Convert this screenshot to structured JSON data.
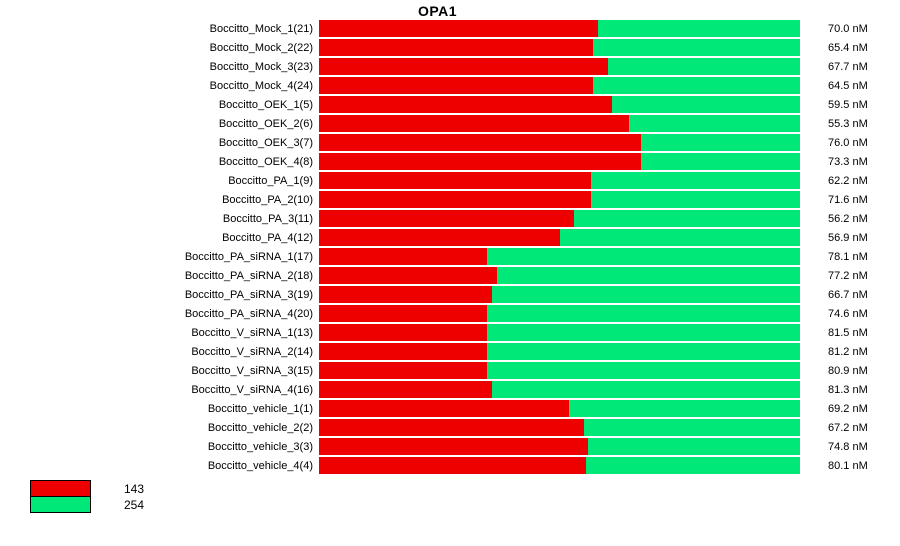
{
  "colors": {
    "red": "#ee0000",
    "green": "#00e878",
    "background": "#ffffff",
    "text": "#000000"
  },
  "chart_data": {
    "type": "bar",
    "orientation": "horizontal",
    "stacking": "percent",
    "grid": false,
    "legend_position": "bottom-left",
    "title": "OPA1",
    "value_unit": "nM",
    "legend": [
      {
        "label": "143",
        "color": "#ee0000"
      },
      {
        "label": "254",
        "color": "#00e878"
      }
    ],
    "rows": [
      {
        "label": "Boccitto_Mock_1(21)",
        "value_nM": 70.0,
        "value_label": "70.0 nM",
        "fraction_143": 0.58,
        "fraction_254": 0.42
      },
      {
        "label": "Boccitto_Mock_2(22)",
        "value_nM": 65.4,
        "value_label": "65.4 nM",
        "fraction_143": 0.57,
        "fraction_254": 0.43
      },
      {
        "label": "Boccitto_Mock_3(23)",
        "value_nM": 67.7,
        "value_label": "67.7 nM",
        "fraction_143": 0.6,
        "fraction_254": 0.4
      },
      {
        "label": "Boccitto_Mock_4(24)",
        "value_nM": 64.5,
        "value_label": "64.5 nM",
        "fraction_143": 0.57,
        "fraction_254": 0.43
      },
      {
        "label": "Boccitto_OEK_1(5)",
        "value_nM": 59.5,
        "value_label": "59.5 nM",
        "fraction_143": 0.61,
        "fraction_254": 0.39
      },
      {
        "label": "Boccitto_OEK_2(6)",
        "value_nM": 55.3,
        "value_label": "55.3 nM",
        "fraction_143": 0.645,
        "fraction_254": 0.355
      },
      {
        "label": "Boccitto_OEK_3(7)",
        "value_nM": 76.0,
        "value_label": "76.0 nM",
        "fraction_143": 0.67,
        "fraction_254": 0.33
      },
      {
        "label": "Boccitto_OEK_4(8)",
        "value_nM": 73.3,
        "value_label": "73.3 nM",
        "fraction_143": 0.67,
        "fraction_254": 0.33
      },
      {
        "label": "Boccitto_PA_1(9)",
        "value_nM": 62.2,
        "value_label": "62.2 nM",
        "fraction_143": 0.565,
        "fraction_254": 0.435
      },
      {
        "label": "Boccitto_PA_2(10)",
        "value_nM": 71.6,
        "value_label": "71.6 nM",
        "fraction_143": 0.565,
        "fraction_254": 0.435
      },
      {
        "label": "Boccitto_PA_3(11)",
        "value_nM": 56.2,
        "value_label": "56.2 nM",
        "fraction_143": 0.53,
        "fraction_254": 0.47
      },
      {
        "label": "Boccitto_PA_4(12)",
        "value_nM": 56.9,
        "value_label": "56.9 nM",
        "fraction_143": 0.5,
        "fraction_254": 0.5
      },
      {
        "label": "Boccitto_PA_siRNA_1(17)",
        "value_nM": 78.1,
        "value_label": "78.1 nM",
        "fraction_143": 0.35,
        "fraction_254": 0.65
      },
      {
        "label": "Boccitto_PA_siRNA_2(18)",
        "value_nM": 77.2,
        "value_label": "77.2 nM",
        "fraction_143": 0.37,
        "fraction_254": 0.63
      },
      {
        "label": "Boccitto_PA_siRNA_3(19)",
        "value_nM": 66.7,
        "value_label": "66.7 nM",
        "fraction_143": 0.36,
        "fraction_254": 0.64
      },
      {
        "label": "Boccitto_PA_siRNA_4(20)",
        "value_nM": 74.6,
        "value_label": "74.6 nM",
        "fraction_143": 0.35,
        "fraction_254": 0.65
      },
      {
        "label": "Boccitto_V_siRNA_1(13)",
        "value_nM": 81.5,
        "value_label": "81.5 nM",
        "fraction_143": 0.35,
        "fraction_254": 0.65
      },
      {
        "label": "Boccitto_V_siRNA_2(14)",
        "value_nM": 81.2,
        "value_label": "81.2 nM",
        "fraction_143": 0.35,
        "fraction_254": 0.65
      },
      {
        "label": "Boccitto_V_siRNA_3(15)",
        "value_nM": 80.9,
        "value_label": "80.9 nM",
        "fraction_143": 0.35,
        "fraction_254": 0.65
      },
      {
        "label": "Boccitto_V_siRNA_4(16)",
        "value_nM": 81.3,
        "value_label": "81.3 nM",
        "fraction_143": 0.36,
        "fraction_254": 0.64
      },
      {
        "label": "Boccitto_vehicle_1(1)",
        "value_nM": 69.2,
        "value_label": "69.2 nM",
        "fraction_143": 0.52,
        "fraction_254": 0.48
      },
      {
        "label": "Boccitto_vehicle_2(2)",
        "value_nM": 67.2,
        "value_label": "67.2 nM",
        "fraction_143": 0.55,
        "fraction_254": 0.45
      },
      {
        "label": "Boccitto_vehicle_3(3)",
        "value_nM": 74.8,
        "value_label": "74.8 nM",
        "fraction_143": 0.56,
        "fraction_254": 0.44
      },
      {
        "label": "Boccitto_vehicle_4(4)",
        "value_nM": 80.1,
        "value_label": "80.1 nM",
        "fraction_143": 0.555,
        "fraction_254": 0.445
      }
    ]
  }
}
